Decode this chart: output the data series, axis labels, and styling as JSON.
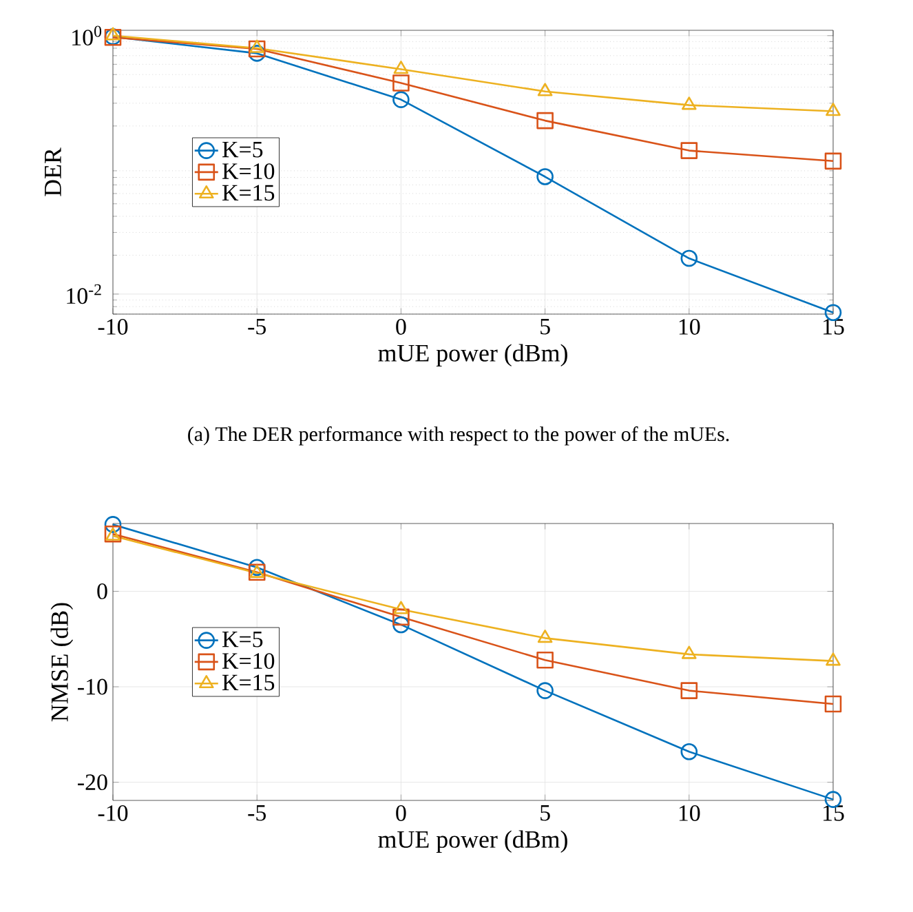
{
  "chart_data": [
    {
      "type": "line",
      "xlabel": "mUE power (dBm)",
      "ylabel": "DER",
      "x": [
        -10,
        -5,
        0,
        5,
        10,
        15
      ],
      "xlim": [
        -10,
        15
      ],
      "xticks": [
        -10,
        -5,
        0,
        5,
        10,
        15
      ],
      "ylim": [
        0.007,
        1.1
      ],
      "yticks": [
        {
          "value": 0.01,
          "label": "10$^{-2}$"
        },
        {
          "value": 1,
          "label": "10$^{0}$"
        }
      ],
      "log": "y",
      "grid": true,
      "legend": "left",
      "line_style": "solid",
      "series": [
        {
          "name": "K=5",
          "color": "#0072bd",
          "marker": "circle",
          "values": [
            0.98,
            0.73,
            0.32,
            0.081,
            0.0189,
            0.0072
          ]
        },
        {
          "name": "K=10",
          "color": "#d95319",
          "marker": "square",
          "values": [
            0.97,
            0.79,
            0.43,
            0.22,
            0.129,
            0.107
          ]
        },
        {
          "name": "K=15",
          "color": "#edb120",
          "marker": "triangle",
          "values": [
            1.0,
            0.8,
            0.55,
            0.37,
            0.29,
            0.26
          ]
        }
      ],
      "annotations": [
        "(a) The DER performance with respect to the power of the mUEs."
      ]
    },
    {
      "type": "line",
      "xlabel": "mUE power (dBm)",
      "ylabel": "NMSE (dB)",
      "x": [
        -10,
        -5,
        0,
        5,
        10,
        15
      ],
      "xlim": [
        -10,
        15
      ],
      "xticks": [
        -10,
        -5,
        0,
        5,
        10,
        15
      ],
      "ylim": [
        -21.9,
        7.1
      ],
      "yticks": [
        -20,
        -10,
        0
      ],
      "grid": true,
      "legend": "left",
      "line_style": "solid",
      "series": [
        {
          "name": "K=5",
          "color": "#0072bd",
          "marker": "circle",
          "values": [
            7.0,
            2.5,
            -3.5,
            -10.4,
            -16.8,
            -21.8
          ]
        },
        {
          "name": "K=10",
          "color": "#d95319",
          "marker": "square",
          "values": [
            6.0,
            2.0,
            -2.7,
            -7.2,
            -10.4,
            -11.8
          ]
        },
        {
          "name": "K=15",
          "color": "#edb120",
          "marker": "triangle",
          "values": [
            5.8,
            1.9,
            -1.9,
            -4.9,
            -6.6,
            -7.3
          ]
        }
      ]
    }
  ]
}
